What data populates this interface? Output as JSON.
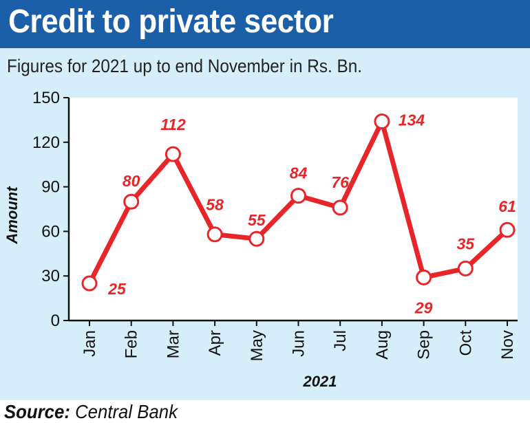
{
  "header": {
    "title": "Credit to private sector",
    "subtitle": "Figures for 2021 up to end November in Rs. Bn."
  },
  "footer": {
    "source_label": "Source:",
    "source_value": "Central Bank"
  },
  "colors": {
    "title_bg": "#1a5fa8",
    "panel_bg": "#d6eef9",
    "line": "#e8262a",
    "label": "#e8262a"
  },
  "chart_data": {
    "type": "line",
    "title": "Credit to private sector",
    "subtitle": "Figures for 2021 up to end November in Rs. Bn.",
    "xlabel": "2021",
    "ylabel": "Amount",
    "categories": [
      "Jan",
      "Feb",
      "Mar",
      "Apr",
      "May",
      "Jun",
      "Jul",
      "Aug",
      "Sep",
      "Oct",
      "Nov"
    ],
    "series": [
      {
        "values": [
          25,
          80,
          112,
          58,
          55,
          84,
          76,
          134,
          29,
          35,
          61
        ]
      }
    ],
    "ylim": [
      0,
      150
    ],
    "yticks": [
      0,
      30,
      60,
      90,
      120,
      150
    ],
    "grid": false,
    "legend": "none"
  }
}
